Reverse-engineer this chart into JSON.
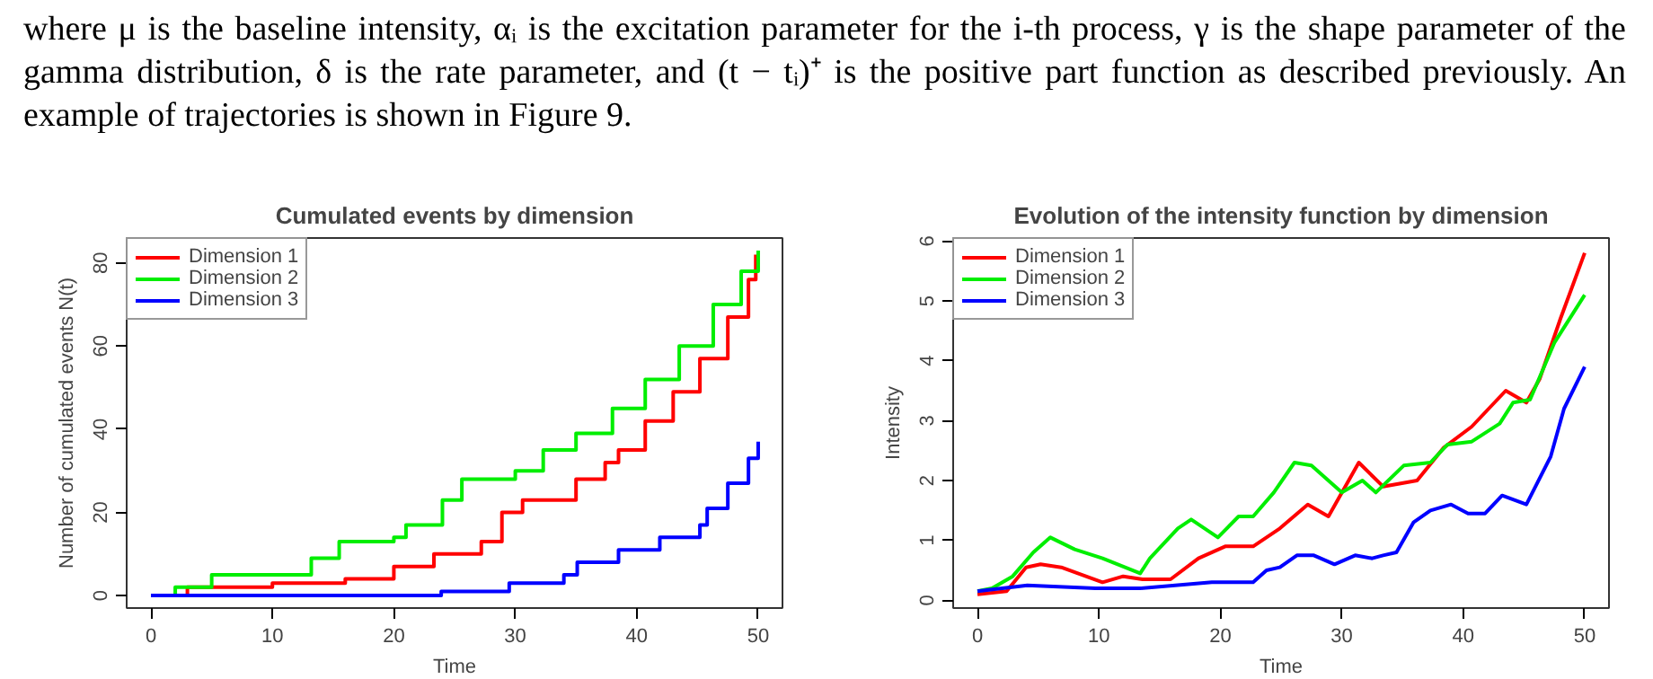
{
  "chart_data": [
    {
      "type": "step",
      "title": "Cumulated events by dimension",
      "xlabel": "Time",
      "ylabel": "Number of cumulated events N(t)",
      "annotations": [
        "where μ is the baseline intensity, αᵢ is the excitation parameter for the i-th process, γ is the shape parameter of the gamma distribution, δ is the rate parameter, and (t − tᵢ)⁺ is the positive part function as described previously. An example of trajectories is shown in Figure 9."
      ],
      "xlim": [
        -2,
        52
      ],
      "ylim": [
        -3,
        86
      ],
      "xticks": [
        0,
        10,
        20,
        30,
        40,
        50
      ],
      "yticks": [
        0,
        20,
        40,
        60,
        80
      ],
      "grid": false,
      "legend": "top left",
      "series": [
        {
          "name": "Dimension 1",
          "color": "#ff0000",
          "x": [
            0,
            3,
            10,
            16,
            20,
            23.3,
            27.2,
            28.9,
            30.6,
            35,
            37.4,
            38.5,
            40.7,
            43,
            45.2,
            47.5,
            49.2,
            49.8
          ],
          "values": [
            0,
            2,
            3,
            4,
            7,
            10,
            13,
            20,
            23,
            28,
            32,
            35,
            42,
            49,
            57,
            67,
            76,
            82
          ]
        },
        {
          "name": "Dimension 2",
          "color": "#00ee00",
          "x": [
            0,
            2,
            5,
            13.2,
            15.5,
            20,
            21,
            24,
            25.6,
            30,
            32.3,
            35,
            38,
            40.7,
            43.5,
            46.3,
            48.6,
            50
          ],
          "values": [
            0,
            2,
            5,
            9,
            13,
            14,
            17,
            23,
            28,
            30,
            35,
            39,
            45,
            52,
            60,
            70,
            78,
            83
          ]
        },
        {
          "name": "Dimension 3",
          "color": "#0000ff",
          "x": [
            0,
            23.9,
            29.5,
            34,
            35.1,
            38.5,
            41.9,
            45.2,
            45.8,
            47.5,
            49.2,
            50
          ],
          "values": [
            0,
            1,
            3,
            5,
            8,
            11,
            14,
            17,
            21,
            27,
            33,
            37
          ]
        }
      ]
    },
    {
      "type": "line",
      "title": "Evolution of the intensity function by dimension",
      "xlabel": "Time",
      "ylabel": "Intensity",
      "xlim": [
        -2,
        52
      ],
      "ylim": [
        -0.13,
        6.05
      ],
      "xticks": [
        0,
        10,
        20,
        30,
        40,
        50
      ],
      "yticks": [
        0,
        1,
        2,
        3,
        4,
        5,
        6
      ],
      "grid": false,
      "legend": "top left",
      "series": [
        {
          "name": "Dimension 1",
          "color": "#ff0000",
          "x": [
            0,
            2.4,
            4,
            5.2,
            6.9,
            10.3,
            12,
            13.6,
            15.9,
            18.2,
            20.4,
            22.7,
            24.9,
            27.2,
            28.9,
            31.4,
            33.4,
            36.2,
            38.4,
            40.7,
            43.5,
            45.2,
            46.3,
            48,
            50
          ],
          "values": [
            0.1,
            0.15,
            0.55,
            0.6,
            0.55,
            0.3,
            0.4,
            0.35,
            0.35,
            0.7,
            0.9,
            0.9,
            1.2,
            1.6,
            1.4,
            2.3,
            1.9,
            2.0,
            2.55,
            2.9,
            3.5,
            3.3,
            3.7,
            4.7,
            5.8
          ]
        },
        {
          "name": "Dimension 2",
          "color": "#00ee00",
          "x": [
            0,
            1.2,
            2.9,
            4.6,
            6,
            8,
            10.3,
            13.4,
            14.2,
            16.5,
            17.6,
            19.8,
            21.5,
            22.7,
            24.4,
            26.1,
            27.5,
            30,
            31.7,
            32.8,
            35.1,
            37.3,
            38.7,
            40.7,
            43,
            44.1,
            45.5,
            47.5,
            50
          ],
          "values": [
            0.15,
            0.2,
            0.4,
            0.8,
            1.05,
            0.85,
            0.7,
            0.45,
            0.7,
            1.2,
            1.35,
            1.05,
            1.4,
            1.4,
            1.8,
            2.3,
            2.25,
            1.8,
            2.0,
            1.8,
            2.25,
            2.3,
            2.6,
            2.65,
            2.95,
            3.3,
            3.35,
            4.3,
            5.1
          ]
        },
        {
          "name": "Dimension 3",
          "color": "#0000ff",
          "x": [
            0,
            4.1,
            9.7,
            13.4,
            19.3,
            22.7,
            23.8,
            24.9,
            26.3,
            27.7,
            29.4,
            31.1,
            32.5,
            33.4,
            34.5,
            35.9,
            37.3,
            39,
            40.4,
            41.8,
            43.2,
            45.2,
            47.2,
            48.3,
            50
          ],
          "values": [
            0.15,
            0.25,
            0.2,
            0.2,
            0.3,
            0.3,
            0.5,
            0.55,
            0.75,
            0.75,
            0.6,
            0.75,
            0.7,
            0.75,
            0.8,
            1.3,
            1.5,
            1.6,
            1.45,
            1.45,
            1.75,
            1.6,
            2.4,
            3.2,
            3.9
          ]
        }
      ]
    }
  ]
}
